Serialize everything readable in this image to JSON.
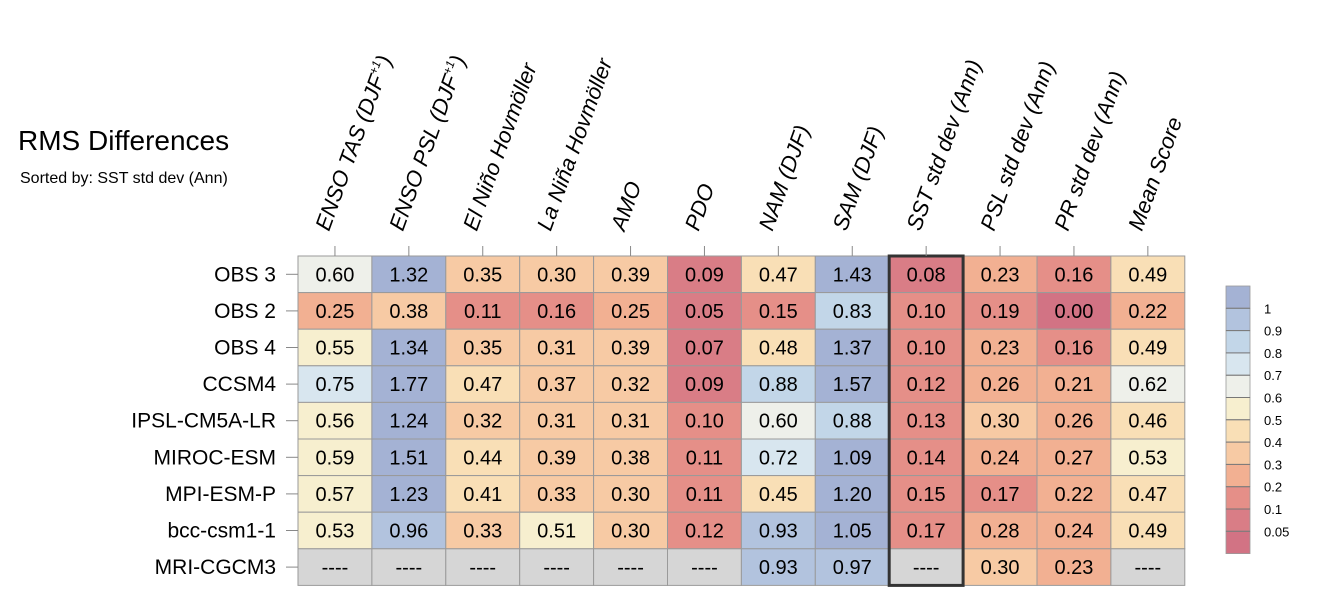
{
  "title": "RMS Differences",
  "subtitle": "Sorted by: SST std dev (Ann)",
  "chart_data": {
    "type": "heatmap",
    "columns": [
      {
        "main": "ENSO TAS (DJF",
        "sup": "+1",
        "tail": ")"
      },
      {
        "main": "ENSO PSL (DJF",
        "sup": "+1",
        "tail": ")"
      },
      {
        "main": "El Niño Hovmöller",
        "sup": "",
        "tail": ""
      },
      {
        "main": "La Niña Hovmöller",
        "sup": "",
        "tail": ""
      },
      {
        "main": "AMO",
        "sup": "",
        "tail": ""
      },
      {
        "main": "PDO",
        "sup": "",
        "tail": ""
      },
      {
        "main": "NAM (DJF)",
        "sup": "",
        "tail": ""
      },
      {
        "main": "SAM (DJF)",
        "sup": "",
        "tail": ""
      },
      {
        "main": "SST std dev (Ann)",
        "sup": "",
        "tail": ""
      },
      {
        "main": "PSL std dev (Ann)",
        "sup": "",
        "tail": ""
      },
      {
        "main": "PR std dev (Ann)",
        "sup": "",
        "tail": ""
      },
      {
        "main": "Mean Score",
        "sup": "",
        "tail": ""
      }
    ],
    "rows": [
      "OBS 3",
      "OBS 2",
      "OBS 4",
      "CCSM4",
      "IPSL-CM5A-LR",
      "MIROC-ESM",
      "MPI-ESM-P",
      "bcc-csm1-1",
      "MRI-CGCM3"
    ],
    "values": [
      [
        "0.60",
        "1.32",
        "0.35",
        "0.30",
        "0.39",
        "0.09",
        "0.47",
        "1.43",
        "0.08",
        "0.23",
        "0.16",
        "0.49"
      ],
      [
        "0.25",
        "0.38",
        "0.11",
        "0.16",
        "0.25",
        "0.05",
        "0.15",
        "0.83",
        "0.10",
        "0.19",
        "0.00",
        "0.22"
      ],
      [
        "0.55",
        "1.34",
        "0.35",
        "0.31",
        "0.39",
        "0.07",
        "0.48",
        "1.37",
        "0.10",
        "0.23",
        "0.16",
        "0.49"
      ],
      [
        "0.75",
        "1.77",
        "0.47",
        "0.37",
        "0.32",
        "0.09",
        "0.88",
        "1.57",
        "0.12",
        "0.26",
        "0.21",
        "0.62"
      ],
      [
        "0.56",
        "1.24",
        "0.32",
        "0.31",
        "0.31",
        "0.10",
        "0.60",
        "0.88",
        "0.13",
        "0.30",
        "0.26",
        "0.46"
      ],
      [
        "0.59",
        "1.51",
        "0.44",
        "0.39",
        "0.38",
        "0.11",
        "0.72",
        "1.09",
        "0.14",
        "0.24",
        "0.27",
        "0.53"
      ],
      [
        "0.57",
        "1.23",
        "0.41",
        "0.33",
        "0.30",
        "0.11",
        "0.45",
        "1.20",
        "0.15",
        "0.17",
        "0.22",
        "0.47"
      ],
      [
        "0.53",
        "0.96",
        "0.33",
        "0.51",
        "0.30",
        "0.12",
        "0.93",
        "1.05",
        "0.17",
        "0.28",
        "0.24",
        "0.49"
      ],
      [
        "----",
        "----",
        "----",
        "----",
        "----",
        "----",
        "0.93",
        "0.97",
        "----",
        "0.30",
        "0.23",
        "----"
      ]
    ],
    "highlight_column": "SST std dev (Ann)",
    "legend": {
      "placement": "right",
      "levels": [
        "1",
        "0.9",
        "0.8",
        "0.7",
        "0.6",
        "0.5",
        "0.4",
        "0.3",
        "0.2",
        "0.1",
        "0.05"
      ],
      "colors": [
        "#a4b2d4",
        "#b2c3de",
        "#c2d6e8",
        "#d8e6ef",
        "#eef0ea",
        "#f7efcf",
        "#f9dfb6",
        "#f7caa4",
        "#f2b092",
        "#e58f88",
        "#d97d86",
        "#d27384"
      ]
    },
    "missing_color": "#d6d6d6"
  }
}
